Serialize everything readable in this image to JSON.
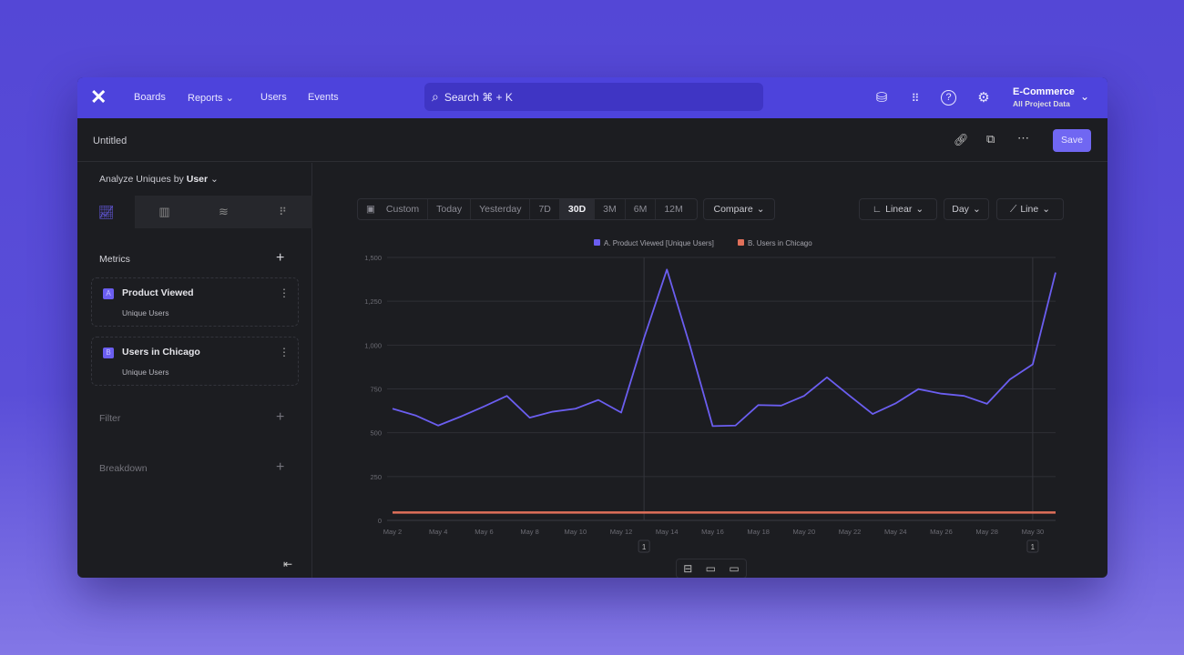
{
  "nav": {
    "logo": "mixpanel-logo",
    "items": [
      "Boards",
      "Reports",
      "Users",
      "Events"
    ],
    "search": "Search ⌘ + K",
    "project": "E-Commerce",
    "project_sub": "All Project Data"
  },
  "report": {
    "title": "Untitled",
    "save": "Save"
  },
  "sidebar": {
    "analyze_label": "Analyze Uniques by",
    "analyze_value": "User",
    "metrics_label": "Metrics",
    "metrics": [
      {
        "letter": "A",
        "name": "Product Viewed",
        "sub": "Unique Users"
      },
      {
        "letter": "B",
        "name": "Users in Chicago",
        "sub": "Unique Users"
      }
    ],
    "filter": "Filter",
    "breakdown": "Breakdown"
  },
  "controls": {
    "ranges": [
      "Custom",
      "Today",
      "Yesterday",
      "7D",
      "30D",
      "3M",
      "6M",
      "12M"
    ],
    "active_range": "30D",
    "compare": "Compare",
    "scale": "Linear",
    "interval": "Day",
    "chart_type": "Line"
  },
  "chart_data": {
    "type": "line",
    "x": [
      "May 2",
      "May 3",
      "May 4",
      "May 5",
      "May 6",
      "May 7",
      "May 8",
      "May 9",
      "May 10",
      "May 11",
      "May 12",
      "May 13",
      "May 14",
      "May 15",
      "May 16",
      "May 17",
      "May 18",
      "May 19",
      "May 20",
      "May 21",
      "May 22",
      "May 23",
      "May 24",
      "May 25",
      "May 26",
      "May 27",
      "May 28",
      "May 29",
      "May 30",
      "May 31"
    ],
    "xticks": [
      "May 2",
      "May 4",
      "May 6",
      "May 8",
      "May 10",
      "May 12",
      "May 14",
      "May 16",
      "May 18",
      "May 20",
      "May 22",
      "May 24",
      "May 26",
      "May 28",
      "May 30"
    ],
    "yticks": [
      "0",
      "250",
      "500",
      "750",
      "1,000",
      "1,250",
      "1,500"
    ],
    "ylim": [
      0,
      1500
    ],
    "grid": true,
    "legend": "top-center",
    "series": [
      {
        "name": "A. Product Viewed [Unique Users]",
        "color": "#6b5ef0",
        "values": [
          637,
          599,
          541,
          593,
          650,
          710,
          586,
          620,
          637,
          687,
          615,
          1040,
          1431,
          1000,
          538,
          541,
          658,
          655,
          710,
          816,
          710,
          607,
          667,
          749,
          723,
          710,
          665,
          804,
          890,
          1414
        ]
      },
      {
        "name": "B. Users in Chicago",
        "color": "#e0705a",
        "values": [
          45,
          45,
          45,
          45,
          45,
          45,
          45,
          45,
          45,
          45,
          45,
          45,
          45,
          45,
          45,
          45,
          45,
          45,
          45,
          45,
          45,
          45,
          45,
          45,
          45,
          45,
          45,
          45,
          45,
          45
        ]
      }
    ],
    "annotations": [
      {
        "x": "May 13",
        "label": "1"
      },
      {
        "x": "May 30",
        "label": "1"
      }
    ]
  }
}
